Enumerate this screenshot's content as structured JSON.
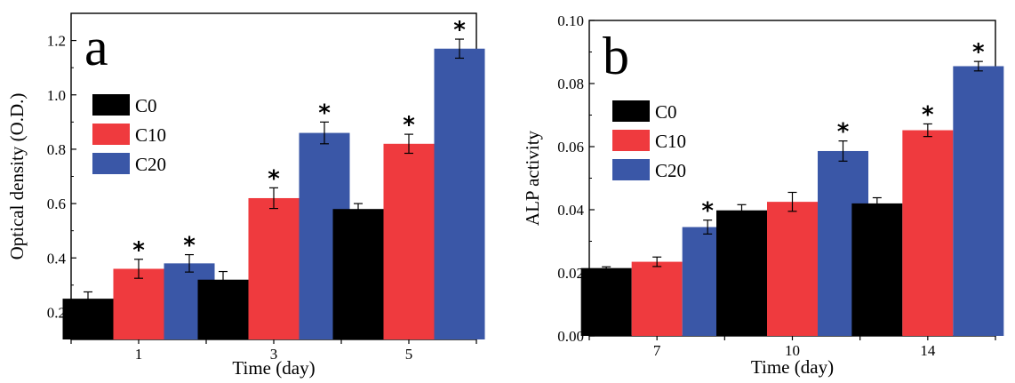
{
  "colors": {
    "C0": "#000000",
    "C10": "#ef3a3e",
    "C20": "#3a57a7"
  },
  "chart_data": [
    {
      "type": "bar",
      "panel_label": "a",
      "xlabel": "Time (day)",
      "ylabel": "Optical density (O.D.)",
      "categories": [
        "1",
        "3",
        "5"
      ],
      "ylim": [
        0.1,
        1.3
      ],
      "yticks": [
        0.2,
        0.4,
        0.6,
        0.8,
        1.0,
        1.2
      ],
      "ytick_labels": [
        "0.2",
        "0.4",
        "0.6",
        "0.8",
        "1.0",
        "1.2"
      ],
      "legend_position": "upper-left",
      "series": [
        {
          "name": "C0",
          "values": [
            0.25,
            0.32,
            0.58
          ],
          "errors": [
            0.025,
            0.03,
            0.02
          ],
          "significant": [
            false,
            false,
            false
          ]
        },
        {
          "name": "C10",
          "values": [
            0.36,
            0.62,
            0.82
          ],
          "errors": [
            0.035,
            0.038,
            0.035
          ],
          "significant": [
            true,
            true,
            true
          ]
        },
        {
          "name": "C20",
          "values": [
            0.38,
            0.86,
            1.17
          ],
          "errors": [
            0.032,
            0.04,
            0.035
          ],
          "significant": [
            true,
            true,
            true
          ]
        }
      ],
      "significance_marker": "*"
    },
    {
      "type": "bar",
      "panel_label": "b",
      "xlabel": "Time (day)",
      "ylabel": "ALP activity",
      "categories": [
        "7",
        "10",
        "14"
      ],
      "ylim": [
        0.0,
        0.1
      ],
      "yticks": [
        0.0,
        0.02,
        0.04,
        0.06,
        0.08,
        0.1
      ],
      "ytick_labels": [
        "0.00",
        "0.02",
        "0.04",
        "0.06",
        "0.08",
        "0.10"
      ],
      "legend_position": "upper-left",
      "series": [
        {
          "name": "C0",
          "values": [
            0.0215,
            0.0398,
            0.042
          ],
          "errors": [
            0.0004,
            0.0018,
            0.0018
          ],
          "significant": [
            false,
            false,
            false
          ]
        },
        {
          "name": "C10",
          "values": [
            0.0235,
            0.0425,
            0.0652
          ],
          "errors": [
            0.0015,
            0.003,
            0.002
          ],
          "significant": [
            false,
            false,
            true
          ]
        },
        {
          "name": "C20",
          "values": [
            0.0345,
            0.0586,
            0.0855
          ],
          "errors": [
            0.0022,
            0.0032,
            0.0015
          ],
          "significant": [
            true,
            true,
            true
          ]
        }
      ],
      "significance_marker": "*"
    }
  ]
}
